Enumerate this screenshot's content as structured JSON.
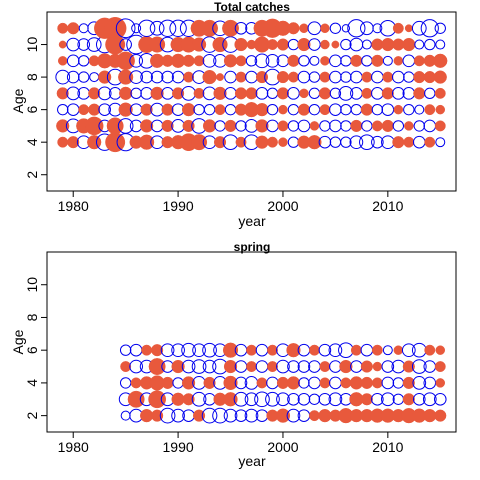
{
  "chart_data": [
    {
      "type": "scatter",
      "title": "Total catches",
      "xlabel": "year",
      "ylabel": "Age",
      "xlim": [
        1977.5,
        2016.5
      ],
      "ylim": [
        1,
        12
      ],
      "xticks": [
        1980,
        1990,
        2000,
        2010
      ],
      "yticks": [
        2,
        4,
        6,
        8,
        10
      ],
      "x_start": 1979,
      "x_end": 2015,
      "ages": [
        4,
        5,
        6,
        7,
        8,
        9,
        10,
        11
      ],
      "series": [
        {
          "name": "",
          "sign": "negative",
          "color": "#e8593c",
          "marker": "filled-circle"
        },
        {
          "name": "",
          "sign": "positive",
          "color": "#0000ee",
          "marker": "open-circle"
        }
      ],
      "residuals": {
        "11": [
          -0.4,
          -0.5,
          0.3,
          0.6,
          -1.6,
          -1.8,
          1.3,
          0.3,
          1.0,
          0.7,
          1.0,
          1.0,
          1.0,
          -1.0,
          -1.0,
          0.8,
          -1.0,
          0.5,
          0.5,
          -1.0,
          -1.3,
          -0.8,
          -0.5,
          -0.3,
          0.6,
          -0.3,
          0.4,
          0.2,
          1.1,
          0.6,
          0.3,
          0.9,
          -0.4,
          -0.2,
          0.7,
          1.1,
          0.4
        ],
        "10": [
          -0.2,
          0.6,
          0.5,
          0.7,
          1.0,
          -1.4,
          0.5,
          1.3,
          -1.0,
          -0.9,
          0.8,
          -0.8,
          -0.9,
          -0.7,
          0.9,
          -0.8,
          0.9,
          -0.6,
          -0.3,
          -0.9,
          -0.4,
          -0.5,
          0.4,
          -0.6,
          0.5,
          -0.3,
          -0.2,
          0.4,
          0.6,
          0.3,
          -0.5,
          -0.6,
          -0.5,
          -0.6,
          0.3,
          0.4,
          0.3
        ],
        "9": [
          -0.3,
          0.5,
          0.4,
          -0.4,
          -0.8,
          -0.7,
          -1.2,
          0.6,
          0.8,
          -0.7,
          -0.5,
          -0.7,
          -0.5,
          -0.4,
          0.6,
          0.6,
          -0.6,
          -0.4,
          0.4,
          0.7,
          0.6,
          0.5,
          -0.5,
          0.4,
          0.3,
          -0.3,
          0.5,
          0.4,
          -0.5,
          0.4,
          -0.5,
          0.3,
          -0.3,
          0.5,
          -0.4,
          -0.5,
          -0.7
        ],
        "8": [
          0.7,
          0.5,
          0.4,
          0.3,
          -0.6,
          0.9,
          -0.8,
          0.6,
          0.5,
          0.5,
          0.5,
          0.5,
          -0.4,
          0.6,
          -0.7,
          -0.2,
          0.5,
          -0.4,
          0.5,
          -0.5,
          0.9,
          -0.5,
          -0.4,
          0.5,
          0.4,
          -0.4,
          0.5,
          0.4,
          0.5,
          -0.4,
          0.5,
          -0.4,
          0.5,
          0.4,
          -0.5,
          -0.5,
          -0.6
        ],
        "7": [
          -0.5,
          0.6,
          0.5,
          -0.5,
          0.6,
          0.5,
          -0.6,
          0.4,
          0.5,
          -0.6,
          0.5,
          -0.5,
          0.7,
          -0.4,
          0.6,
          -0.6,
          0.5,
          -0.5,
          -0.5,
          0.5,
          0.4,
          -0.5,
          0.5,
          -0.3,
          0.4,
          -0.5,
          0.4,
          0.7,
          0.5,
          -0.4,
          0.5,
          -0.5,
          0.5,
          0.5,
          -0.5,
          0.4,
          -0.4
        ],
        "6": [
          0.4,
          0.5,
          -0.4,
          -0.5,
          0.5,
          0.6,
          -0.7,
          0.5,
          -0.5,
          0.6,
          -0.5,
          0.5,
          -0.6,
          0.4,
          0.4,
          -0.4,
          0.4,
          -0.5,
          -0.8,
          -0.6,
          0.4,
          -0.3,
          0.4,
          -0.5,
          0.4,
          -0.4,
          0.5,
          0.4,
          0.4,
          -0.5,
          0.4,
          0.5,
          -0.3,
          0.4,
          0.3,
          -0.4,
          -0.3
        ],
        "5": [
          -0.6,
          0.7,
          -0.8,
          -1.2,
          0.5,
          -1.0,
          0.8,
          0.5,
          -0.6,
          0.5,
          -0.5,
          0.6,
          -0.5,
          0.8,
          -0.6,
          0.4,
          -0.5,
          0.4,
          0.6,
          -0.6,
          0.5,
          -0.4,
          0.4,
          0.5,
          -0.3,
          0.4,
          0.5,
          0.4,
          -0.5,
          0.4,
          -0.4,
          -0.5,
          0.4,
          -0.3,
          0.4,
          0.5,
          -0.4
        ],
        "4": [
          -0.4,
          -0.5,
          0.6,
          -0.7,
          1.0,
          -1.4,
          1.1,
          -0.6,
          -0.8,
          0.6,
          -0.5,
          -0.7,
          -1.1,
          -0.9,
          0.6,
          -0.5,
          0.8,
          -0.4,
          0.8,
          -0.6,
          -0.4,
          -0.3,
          0.4,
          -0.6,
          -0.7,
          0.5,
          0.4,
          0.4,
          0.6,
          0.8,
          0.5,
          0.6,
          -0.5,
          -0.4,
          0.5,
          -0.4,
          0.3
        ]
      }
    },
    {
      "type": "scatter",
      "title": "spring",
      "xlabel": "year",
      "ylabel": "Age",
      "xlim": [
        1977.5,
        2016.5
      ],
      "ylim": [
        1,
        12
      ],
      "xticks": [
        1980,
        1990,
        2000,
        2010
      ],
      "yticks": [
        2,
        4,
        6,
        8,
        10
      ],
      "x_start": 1985,
      "x_end": 2015,
      "ages": [
        2,
        3,
        4,
        5,
        6
      ],
      "series": [
        {
          "name": "",
          "sign": "negative",
          "color": "#e8593c",
          "marker": "filled-circle"
        },
        {
          "name": "",
          "sign": "positive",
          "color": "#0000ee",
          "marker": "open-circle"
        }
      ],
      "residuals": {
        "6": [
          0.4,
          0.5,
          -0.4,
          -0.5,
          0.6,
          0.6,
          0.7,
          0.6,
          0.7,
          0.6,
          -0.8,
          0.5,
          -0.4,
          0.5,
          -0.4,
          0.6,
          -0.7,
          0.5,
          -0.4,
          0.5,
          0.6,
          0.8,
          -0.4,
          0.5,
          -0.4,
          0.3,
          -0.3,
          0.6,
          0.7,
          -0.4,
          -0.3
        ],
        "5": [
          -0.4,
          0.6,
          0.6,
          -1.0,
          0.5,
          -0.6,
          0.6,
          0.7,
          0.6,
          0.8,
          -0.6,
          0.5,
          -0.4,
          0.5,
          -0.4,
          0.6,
          0.5,
          0.5,
          0.5,
          -0.4,
          0.5,
          -0.6,
          0.5,
          -0.5,
          -0.3,
          0.5,
          0.6,
          -0.5,
          0.7,
          0.5,
          -0.4
        ],
        "4": [
          0.4,
          -0.4,
          -0.6,
          -0.8,
          -0.5,
          0.4,
          -0.6,
          0.6,
          -0.5,
          0.6,
          -0.7,
          0.5,
          0.6,
          -0.4,
          0.5,
          -0.5,
          -0.6,
          0.4,
          0.5,
          -0.4,
          0.5,
          -0.4,
          -0.6,
          -0.5,
          -0.4,
          0.5,
          0.4,
          -0.5,
          0.6,
          0.5,
          -0.3
        ],
        "3": [
          0.6,
          -1.0,
          0.6,
          -1.1,
          0.6,
          -0.6,
          -0.5,
          0.7,
          0.5,
          -0.6,
          -0.7,
          0.7,
          0.6,
          0.8,
          0.7,
          0.6,
          0.5,
          0.5,
          0.4,
          0.5,
          0.6,
          0.5,
          -0.7,
          -0.5,
          0.5,
          0.6,
          0.4,
          -0.5,
          0.5,
          0.6,
          0.5
        ],
        "2": [
          0.3,
          0.6,
          -0.6,
          -0.5,
          0.8,
          0.6,
          0.5,
          -0.5,
          0.8,
          0.8,
          0.6,
          0.5,
          0.6,
          0.5,
          -0.5,
          -0.7,
          0.6,
          0.5,
          -0.4,
          -0.6,
          -0.5,
          -0.8,
          -0.6,
          -0.6,
          -0.7,
          -0.7,
          -0.6,
          -0.8,
          -0.7,
          -0.6,
          -0.5
        ]
      }
    }
  ]
}
